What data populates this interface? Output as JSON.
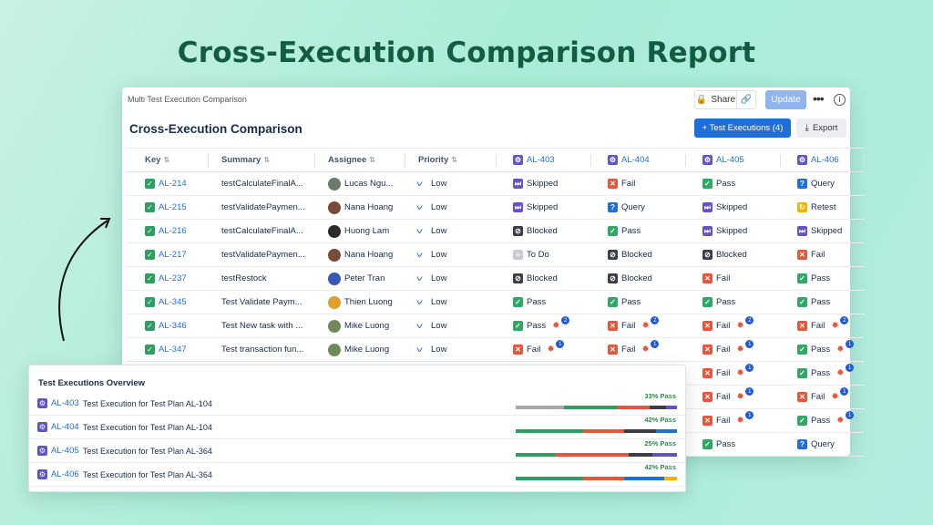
{
  "hero_title": "Cross-Execution Comparison Report",
  "window": {
    "title": "Multi Test Execution Comparison",
    "share_label": "Share",
    "update_label": "Update",
    "more_label": "•••",
    "info_label": "i",
    "page_title": "Cross-Execution Comparison",
    "add_exec_label": "+ Test Executions (4)",
    "export_label": "Export"
  },
  "table": {
    "headers": [
      "Key",
      "Summary",
      "Assignee",
      "Priority"
    ],
    "exec_headers": [
      "AL-403",
      "AL-404",
      "AL-405",
      "AL-406"
    ],
    "rows": [
      {
        "key": "AL-214",
        "summary": "testCalculateFinalA...",
        "assignee": "Lucas Ngu...",
        "avatar": "#6b7b6a",
        "priority": "Low",
        "results": [
          {
            "s": "skipped",
            "t": "Skipped"
          },
          {
            "s": "fail",
            "t": "Fail"
          },
          {
            "s": "pass",
            "t": "Pass"
          },
          {
            "s": "query",
            "t": "Query"
          }
        ]
      },
      {
        "key": "AL-215",
        "summary": "testValidatePaymen...",
        "assignee": "Nana Hoang",
        "avatar": "#7a4a3a",
        "priority": "Low",
        "results": [
          {
            "s": "skipped",
            "t": "Skipped"
          },
          {
            "s": "query",
            "t": "Query"
          },
          {
            "s": "skipped",
            "t": "Skipped"
          },
          {
            "s": "retest",
            "t": "Retest"
          }
        ]
      },
      {
        "key": "AL-216",
        "summary": "testCalculateFinalA...",
        "assignee": "Huong Lam",
        "avatar": "#2b2b2b",
        "priority": "Low",
        "results": [
          {
            "s": "blocked",
            "t": "Blocked"
          },
          {
            "s": "pass",
            "t": "Pass"
          },
          {
            "s": "skipped",
            "t": "Skipped"
          },
          {
            "s": "skipped",
            "t": "Skipped"
          }
        ]
      },
      {
        "key": "AL-217",
        "summary": "testValidatePaymen...",
        "assignee": "Nana Hoang",
        "avatar": "#7a4a3a",
        "priority": "Low",
        "results": [
          {
            "s": "todo",
            "t": "To Do"
          },
          {
            "s": "blocked",
            "t": "Blocked"
          },
          {
            "s": "blocked",
            "t": "Blocked"
          },
          {
            "s": "fail",
            "t": "Fail"
          }
        ]
      },
      {
        "key": "AL-237",
        "summary": "testRestock",
        "assignee": "Peter Tran",
        "avatar": "#3a56b8",
        "priority": "Low",
        "results": [
          {
            "s": "blocked",
            "t": "Blocked"
          },
          {
            "s": "blocked",
            "t": "Blocked"
          },
          {
            "s": "fail",
            "t": "Fail"
          },
          {
            "s": "pass",
            "t": "Pass"
          }
        ]
      },
      {
        "key": "AL-345",
        "summary": "Test Validate Paym...",
        "assignee": "Thien Luong",
        "avatar": "#e0a030",
        "priority": "Low",
        "results": [
          {
            "s": "pass",
            "t": "Pass"
          },
          {
            "s": "pass",
            "t": "Pass"
          },
          {
            "s": "pass",
            "t": "Pass"
          },
          {
            "s": "pass",
            "t": "Pass"
          }
        ]
      },
      {
        "key": "AL-346",
        "summary": "Test New task with ...",
        "assignee": "Mike Luong",
        "avatar": "#6e8a5a",
        "priority": "Low",
        "results": [
          {
            "s": "pass",
            "t": "Pass",
            "bug": "2"
          },
          {
            "s": "fail",
            "t": "Fail",
            "bug": "2"
          },
          {
            "s": "fail",
            "t": "Fail",
            "bug": "2"
          },
          {
            "s": "fail",
            "t": "Fail",
            "bug": "2"
          }
        ]
      },
      {
        "key": "AL-347",
        "summary": "Test transaction fun...",
        "assignee": "Mike Luong",
        "avatar": "#6e8a5a",
        "priority": "Low",
        "results": [
          {
            "s": "fail",
            "t": "Fail",
            "bug": "1"
          },
          {
            "s": "fail",
            "t": "Fail",
            "bug": "1"
          },
          {
            "s": "fail",
            "t": "Fail",
            "bug": "1"
          },
          {
            "s": "pass",
            "t": "Pass",
            "bug": "1"
          }
        ]
      },
      {
        "key": "",
        "summary": "",
        "assignee": "",
        "avatar": "",
        "priority": "",
        "results": [
          {
            "s": "",
            "t": ""
          },
          {
            "s": "",
            "t": ""
          },
          {
            "s": "fail",
            "t": "Fail",
            "bug": "1"
          },
          {
            "s": "pass",
            "t": "Pass",
            "bug": "1"
          }
        ]
      },
      {
        "key": "",
        "summary": "",
        "assignee": "",
        "avatar": "",
        "priority": "",
        "results": [
          {
            "s": "",
            "t": ""
          },
          {
            "s": "",
            "t": ""
          },
          {
            "s": "fail",
            "t": "Fail",
            "bug": "1"
          },
          {
            "s": "fail",
            "t": "Fail",
            "bug": "1"
          }
        ]
      },
      {
        "key": "",
        "summary": "",
        "assignee": "",
        "avatar": "",
        "priority": "",
        "results": [
          {
            "s": "",
            "t": ""
          },
          {
            "s": "",
            "t": ""
          },
          {
            "s": "fail",
            "t": "Fail",
            "bug": "1"
          },
          {
            "s": "pass",
            "t": "Pass",
            "bug": "1"
          }
        ]
      },
      {
        "key": "",
        "summary": "",
        "assignee": "",
        "avatar": "",
        "priority": "",
        "results": [
          {
            "s": "",
            "t": ""
          },
          {
            "s": "",
            "t": ""
          },
          {
            "s": "pass",
            "t": "Pass"
          },
          {
            "s": "query",
            "t": "Query"
          }
        ]
      }
    ]
  },
  "overview": {
    "title": "Test Executions Overview",
    "items": [
      {
        "key": "AL-403",
        "summary": "Test Execution for Test Plan AL-104",
        "pct_label": "33% Pass",
        "segments": [
          {
            "c": "#a5a8ad",
            "w": 30
          },
          {
            "c": "#2f9e63",
            "w": 33
          },
          {
            "c": "#e5563a",
            "w": 20
          },
          {
            "c": "#3b3f45",
            "w": 10
          },
          {
            "c": "#6554c0",
            "w": 7
          }
        ]
      },
      {
        "key": "AL-404",
        "summary": "Test Execution for Test Plan AL-104",
        "pct_label": "42% Pass",
        "segments": [
          {
            "c": "#2f9e63",
            "w": 42
          },
          {
            "c": "#e5563a",
            "w": 25
          },
          {
            "c": "#3b3f45",
            "w": 20
          },
          {
            "c": "#1f6fd9",
            "w": 13
          }
        ]
      },
      {
        "key": "AL-405",
        "summary": "Test Execution for Test Plan AL-364",
        "pct_label": "25% Pass",
        "segments": [
          {
            "c": "#2f9e63",
            "w": 25
          },
          {
            "c": "#e5563a",
            "w": 45
          },
          {
            "c": "#3b3f45",
            "w": 15
          },
          {
            "c": "#6554c0",
            "w": 15
          }
        ]
      },
      {
        "key": "AL-406",
        "summary": "Test Execution for Test Plan AL-364",
        "pct_label": "42% Pass",
        "segments": [
          {
            "c": "#2f9e63",
            "w": 42
          },
          {
            "c": "#e5563a",
            "w": 25
          },
          {
            "c": "#1f6fd9",
            "w": 25
          },
          {
            "c": "#f0b400",
            "w": 8
          }
        ]
      }
    ]
  }
}
